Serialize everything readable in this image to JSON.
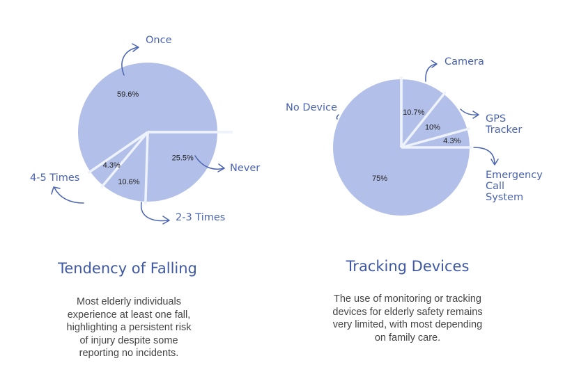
{
  "colors": {
    "slice_fill": "#b2bfe8",
    "divider": "#eef2fb",
    "label_blue": "#4a63b0",
    "arrow": "#4a63b0",
    "title": "#3f58a3",
    "body_text": "#444444",
    "percent_text": "#222222"
  },
  "chart_data": [
    {
      "type": "pie",
      "title": "Tendency of Falling",
      "categories": [
        "Once",
        "Never",
        "2-3 Times",
        "4-5 Times"
      ],
      "values": [
        59.6,
        25.5,
        10.6,
        4.3
      ],
      "value_labels": [
        "59.6%",
        "25.5%",
        "10.6%",
        "4.3%"
      ],
      "legend": "callout labels with arrows",
      "caption": [
        "Most elderly individuals",
        "experience at least one fall,",
        "highlighting a persistent risk",
        "of injury despite some",
        "reporting no incidents."
      ]
    },
    {
      "type": "pie",
      "title": "Tracking Devices",
      "categories": [
        "Camera",
        "GPS Tracker",
        "Emergency Call System",
        "No Device"
      ],
      "values": [
        10.7,
        10,
        4.3,
        75
      ],
      "value_labels": [
        "10.7%",
        "10%",
        "4.3%",
        "75%"
      ],
      "legend": "callout labels with arrows",
      "caption": [
        "The use of monitoring or tracking",
        "devices for elderly safety remains",
        "very limited, with most depending",
        "on family care."
      ]
    }
  ]
}
